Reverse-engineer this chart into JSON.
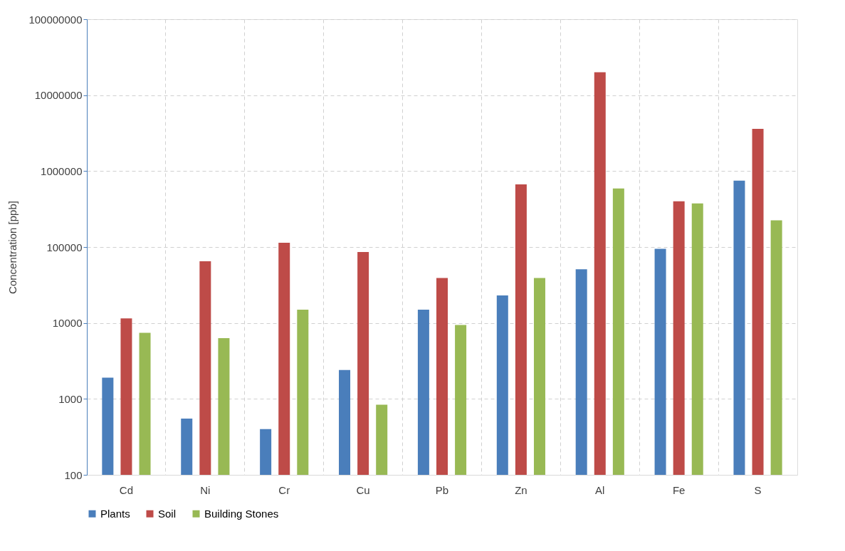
{
  "chart_data": {
    "type": "bar",
    "ylabel": "Concentration [ppb]",
    "categories": [
      "Cd",
      "Ni",
      "Cr",
      "Cu",
      "Pb",
      "Zn",
      "Al",
      "Fe",
      "S"
    ],
    "series": [
      {
        "name": "Plants",
        "color": "#4a7ebb",
        "values": [
          1900,
          550,
          400,
          2400,
          15000,
          23000,
          51000,
          95000,
          750000
        ]
      },
      {
        "name": "Soil",
        "color": "#be4b48",
        "values": [
          11500,
          65000,
          114000,
          86000,
          39000,
          670000,
          20000000,
          400000,
          3600000
        ]
      },
      {
        "name": "Building Stones",
        "color": "#98b954",
        "values": [
          7400,
          6300,
          15000,
          840,
          9400,
          39000,
          590000,
          375000,
          225000
        ]
      }
    ],
    "log": "y",
    "ylim": [
      100,
      100000000
    ],
    "yticks": [
      100,
      1000,
      10000,
      100000,
      1000000,
      10000000,
      100000000
    ],
    "grid": true,
    "legend": "bottom"
  }
}
